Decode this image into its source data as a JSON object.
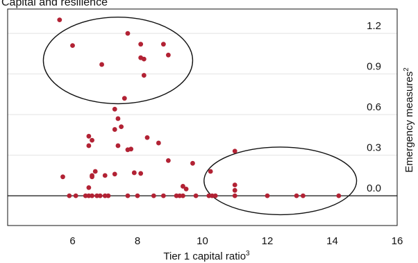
{
  "chart_data": {
    "type": "scatter",
    "title": "Capital and resilience",
    "xlabel": "Tier 1 capital ratio",
    "xlabel_sup": "3",
    "ylabel": "Emergency measures",
    "ylabel_sup": "2",
    "xlim": [
      4,
      16
    ],
    "ylim": [
      -0.22,
      1.38
    ],
    "x_ticks": [
      6,
      8,
      10,
      12,
      14,
      16
    ],
    "y_ticks": [
      0.0,
      0.3,
      0.6,
      0.9,
      1.2
    ],
    "y_tick_labels": [
      "0.0",
      "0.3",
      "0.6",
      "0.9",
      "1.2"
    ],
    "y_axis_side": "right",
    "grid": "horizontal",
    "zero_line": true,
    "point_color": "#b22234",
    "points": [
      {
        "x": 5.6,
        "y": 1.3
      },
      {
        "x": 6.0,
        "y": 1.11
      },
      {
        "x": 6.9,
        "y": 0.97
      },
      {
        "x": 7.7,
        "y": 1.2
      },
      {
        "x": 8.1,
        "y": 1.12
      },
      {
        "x": 8.1,
        "y": 1.02
      },
      {
        "x": 8.2,
        "y": 1.01
      },
      {
        "x": 8.8,
        "y": 1.12
      },
      {
        "x": 8.95,
        "y": 1.04
      },
      {
        "x": 8.2,
        "y": 0.89
      },
      {
        "x": 7.6,
        "y": 0.72
      },
      {
        "x": 7.3,
        "y": 0.64
      },
      {
        "x": 7.4,
        "y": 0.57
      },
      {
        "x": 7.5,
        "y": 0.51
      },
      {
        "x": 7.3,
        "y": 0.49
      },
      {
        "x": 6.5,
        "y": 0.44
      },
      {
        "x": 6.6,
        "y": 0.41
      },
      {
        "x": 6.5,
        "y": 0.37
      },
      {
        "x": 7.4,
        "y": 0.37
      },
      {
        "x": 7.7,
        "y": 0.34
      },
      {
        "x": 7.8,
        "y": 0.345
      },
      {
        "x": 8.3,
        "y": 0.43
      },
      {
        "x": 8.65,
        "y": 0.39
      },
      {
        "x": 8.95,
        "y": 0.26
      },
      {
        "x": 9.7,
        "y": 0.24
      },
      {
        "x": 11.0,
        "y": 0.33
      },
      {
        "x": 10.25,
        "y": 0.18
      },
      {
        "x": 5.7,
        "y": 0.14
      },
      {
        "x": 6.7,
        "y": 0.18
      },
      {
        "x": 6.6,
        "y": 0.15
      },
      {
        "x": 6.6,
        "y": 0.14
      },
      {
        "x": 7.0,
        "y": 0.15
      },
      {
        "x": 7.3,
        "y": 0.16
      },
      {
        "x": 7.9,
        "y": 0.17
      },
      {
        "x": 8.1,
        "y": 0.165
      },
      {
        "x": 6.5,
        "y": 0.06
      },
      {
        "x": 9.4,
        "y": 0.07
      },
      {
        "x": 9.5,
        "y": 0.05
      },
      {
        "x": 11.0,
        "y": 0.08
      },
      {
        "x": 11.0,
        "y": 0.04
      },
      {
        "x": 5.9,
        "y": 0.0
      },
      {
        "x": 6.1,
        "y": 0.0
      },
      {
        "x": 6.4,
        "y": 0.0
      },
      {
        "x": 6.5,
        "y": 0.0
      },
      {
        "x": 6.6,
        "y": 0.0
      },
      {
        "x": 6.75,
        "y": 0.0
      },
      {
        "x": 6.85,
        "y": 0.0
      },
      {
        "x": 7.0,
        "y": 0.0
      },
      {
        "x": 7.1,
        "y": 0.0
      },
      {
        "x": 7.7,
        "y": 0.0
      },
      {
        "x": 8.0,
        "y": 0.0
      },
      {
        "x": 8.5,
        "y": 0.0
      },
      {
        "x": 8.8,
        "y": 0.0
      },
      {
        "x": 9.2,
        "y": 0.0
      },
      {
        "x": 9.3,
        "y": 0.0
      },
      {
        "x": 9.4,
        "y": 0.0
      },
      {
        "x": 9.8,
        "y": 0.0
      },
      {
        "x": 10.2,
        "y": 0.0
      },
      {
        "x": 10.3,
        "y": 0.0
      },
      {
        "x": 10.4,
        "y": 0.0
      },
      {
        "x": 11.0,
        "y": 0.0
      },
      {
        "x": 12.0,
        "y": 0.0
      },
      {
        "x": 12.9,
        "y": 0.0
      },
      {
        "x": 13.1,
        "y": 0.0
      },
      {
        "x": 14.2,
        "y": 0.0
      }
    ],
    "annotations": [
      {
        "type": "ellipse",
        "cx": 7.4,
        "cy": 1.0,
        "rx": 2.3,
        "ry": 0.32
      },
      {
        "type": "ellipse",
        "cx": 12.4,
        "cy": 0.11,
        "rx": 2.35,
        "ry": 0.25
      }
    ]
  }
}
